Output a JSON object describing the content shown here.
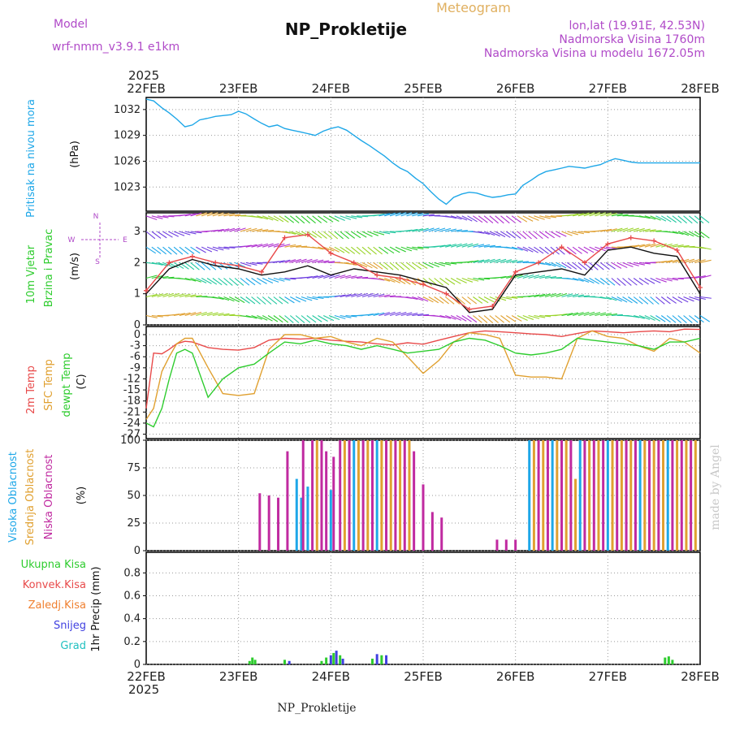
{
  "header": {
    "model_label": "Model",
    "model_name": "wrf-nmm_v3.9.1 e1km",
    "title": "NP_Prokletije",
    "subtitle": "Meteogram",
    "lonlat": "lon,lat (19.91E, 42.53N)",
    "elevation": "Nadmorska Visina 1760m",
    "model_elevation": "Nadmorska Visina u modelu 1672.05m",
    "footer": "NP_Prokletije",
    "credit": "made by Angel"
  },
  "time_axis": {
    "year": "2025",
    "labels": [
      "22FEB",
      "23FEB",
      "24FEB",
      "25FEB",
      "26FEB",
      "27FEB",
      "28FEB"
    ]
  },
  "colors": {
    "pressure": "#1ea7e8",
    "temp2m": "#e84a4a",
    "sfc": "#e0a030",
    "dewpt": "#2ecc2e",
    "cloud_high": "#1ea7e8",
    "cloud_mid": "#e0a030",
    "cloud_low": "#c02aa0",
    "precip_total": "#2ecc2e",
    "precip_conv": "#e84a4a",
    "precip_frozen": "#f08030",
    "snow": "#4040e0",
    "graupel": "#20c0c0"
  },
  "chart_data": [
    {
      "type": "line",
      "name": "pressure",
      "ylabel_1": "Pritisak na nivou mora",
      "ylabel_2": "(hPa)",
      "y_ticks": [
        "1032",
        "1029",
        "1026",
        "1023"
      ],
      "ylim": [
        1020.2,
        1033.4
      ],
      "x_days": [
        0,
        0.08,
        0.17,
        0.25,
        0.33,
        0.42,
        0.5,
        0.58,
        0.67,
        0.75,
        0.83,
        0.92,
        1.0,
        1.08,
        1.17,
        1.25,
        1.33,
        1.42,
        1.5,
        1.58,
        1.67,
        1.75,
        1.83,
        1.92,
        2.0,
        2.08,
        2.17,
        2.25,
        2.33,
        2.42,
        2.5,
        2.58,
        2.67,
        2.75,
        2.83,
        2.92,
        3.0,
        3.08,
        3.17,
        3.25,
        3.33,
        3.42,
        3.5,
        3.58,
        3.67,
        3.75,
        3.83,
        3.92,
        4.0,
        4.08,
        4.17,
        4.25,
        4.33,
        4.42,
        4.5,
        4.58,
        4.67,
        4.75,
        4.83,
        4.92,
        5.0,
        5.08,
        5.17,
        5.25,
        5.33,
        5.42,
        5.5,
        5.58,
        5.67,
        5.75,
        5.83,
        5.92,
        6.0
      ],
      "values": [
        1033.2,
        1033.0,
        1032.2,
        1031.6,
        1030.9,
        1030.0,
        1030.2,
        1030.8,
        1031.0,
        1031.2,
        1031.3,
        1031.4,
        1031.8,
        1031.5,
        1030.9,
        1030.4,
        1030.0,
        1030.2,
        1029.8,
        1029.6,
        1029.4,
        1029.2,
        1029.0,
        1029.5,
        1029.8,
        1030.0,
        1029.6,
        1029.0,
        1028.4,
        1027.8,
        1027.2,
        1026.6,
        1025.8,
        1025.2,
        1024.8,
        1024.0,
        1023.4,
        1022.5,
        1021.6,
        1021.0,
        1021.8,
        1022.2,
        1022.4,
        1022.3,
        1022.0,
        1021.8,
        1021.9,
        1022.1,
        1022.2,
        1023.2,
        1023.8,
        1024.4,
        1024.8,
        1025.0,
        1025.2,
        1025.4,
        1025.3,
        1025.2,
        1025.4,
        1025.6,
        1026.0,
        1026.3,
        1026.1,
        1025.9,
        1025.8,
        1025.8,
        1025.8,
        1025.8,
        1025.8,
        1025.8,
        1025.8,
        1025.8,
        1025.8
      ]
    },
    {
      "type": "wind",
      "name": "wind",
      "ylabel_1": "10m Vjetar",
      "ylabel_2": "Brzina i Pravac",
      "ylabel_3": "(m/s)",
      "compass": [
        "N",
        "W",
        "E",
        "S"
      ],
      "y_ticks": [
        "3",
        "2",
        "1",
        "0"
      ],
      "ylim": [
        0,
        3.6
      ],
      "x_days": [
        0,
        0.25,
        0.5,
        0.75,
        1.0,
        1.25,
        1.5,
        1.75,
        2.0,
        2.25,
        2.5,
        2.75,
        3.0,
        3.25,
        3.5,
        3.75,
        4.0,
        4.25,
        4.5,
        4.75,
        5.0,
        5.25,
        5.5,
        5.75,
        6.0
      ],
      "speed": [
        1.0,
        1.8,
        2.1,
        1.9,
        1.8,
        1.6,
        1.7,
        1.9,
        1.6,
        1.8,
        1.7,
        1.6,
        1.4,
        1.2,
        0.4,
        0.5,
        1.6,
        1.7,
        1.8,
        1.6,
        2.4,
        2.5,
        2.3,
        2.2,
        1.0
      ],
      "gust": [
        1.1,
        2.0,
        2.2,
        2.0,
        1.9,
        1.7,
        2.8,
        2.9,
        2.3,
        2.0,
        1.6,
        1.5,
        1.3,
        1.0,
        0.5,
        0.6,
        1.7,
        2.0,
        2.5,
        2.0,
        2.6,
        2.8,
        2.7,
        2.4,
        1.2
      ],
      "level_rows": [
        0.3,
        0.9,
        1.5,
        2.0,
        2.5,
        3.0,
        3.5
      ]
    },
    {
      "type": "line",
      "name": "temperature",
      "ylabel_1": "2m Temp",
      "ylabel_2": "SFC Temp",
      "ylabel_3": "dewpt Temp",
      "ylabel_4": "(C)",
      "y_ticks": [
        "0",
        "-3",
        "-6",
        "-9",
        "-12",
        "-15",
        "-18",
        "-21",
        "-24",
        "-27"
      ],
      "ylim": [
        -28.2,
        2.2
      ],
      "x_days": [
        0,
        0.08,
        0.17,
        0.25,
        0.33,
        0.42,
        0.5,
        0.67,
        0.83,
        1.0,
        1.17,
        1.33,
        1.5,
        1.67,
        1.83,
        2.0,
        2.17,
        2.33,
        2.5,
        2.67,
        2.83,
        3.0,
        3.17,
        3.33,
        3.5,
        3.67,
        3.83,
        4.0,
        4.17,
        4.33,
        4.5,
        4.67,
        4.83,
        5.0,
        5.17,
        5.33,
        5.5,
        5.67,
        5.83,
        6.0
      ],
      "series": [
        {
          "name": "2m Temp",
          "values": [
            -20,
            -5,
            -5.2,
            -4,
            -2.5,
            -1.8,
            -2.0,
            -3.5,
            -4.0,
            -4.2,
            -3.5,
            -1.5,
            -1.0,
            -1.2,
            -1.0,
            -1.5,
            -1.8,
            -2.0,
            -2.5,
            -2.8,
            -2.2,
            -2.6,
            -1.5,
            -0.5,
            0.5,
            1.0,
            0.8,
            0.5,
            0.2,
            0.0,
            -0.5,
            0.3,
            1.0,
            0.8,
            0.5,
            0.8,
            1.0,
            0.8,
            1.5,
            1.4
          ]
        },
        {
          "name": "SFC Temp",
          "values": [
            -23,
            -20,
            -10,
            -6,
            -2.5,
            -1,
            -1,
            -9,
            -16,
            -16.5,
            -16,
            -4,
            0,
            0,
            -1,
            -0.5,
            -2,
            -3,
            -1,
            -2,
            -6,
            -10.5,
            -7,
            -2,
            0.5,
            0,
            -1,
            -11,
            -11.5,
            -11.5,
            -12,
            -1,
            1,
            -0.5,
            -1,
            -3,
            -4.5,
            -1,
            -2,
            -5
          ]
        },
        {
          "name": "dewpt Temp",
          "values": [
            -24,
            -25,
            -20,
            -12,
            -5,
            -4,
            -5,
            -17,
            -12,
            -9,
            -8,
            -5,
            -2,
            -2.5,
            -1.5,
            -2.5,
            -3,
            -4,
            -3,
            -4,
            -5,
            -4.5,
            -4,
            -2,
            -1,
            -1.5,
            -3,
            -5,
            -5.5,
            -5,
            -4,
            -1,
            -1.5,
            -2,
            -2.5,
            -3,
            -4,
            -2,
            -2,
            -1
          ]
        }
      ]
    },
    {
      "type": "bar",
      "name": "clouds",
      "ylabel_1": "Visoka Oblacnost",
      "ylabel_2": "Srednja Oblacnost",
      "ylabel_3": "Niska Oblacnost",
      "ylabel_4": "(%)",
      "y_ticks": [
        "100",
        "75",
        "50",
        "25",
        "0"
      ],
      "ylim": [
        0,
        100
      ],
      "bars": [
        [
          1.23,
          "low",
          52
        ],
        [
          1.33,
          "low",
          50
        ],
        [
          1.43,
          "low",
          48
        ],
        [
          1.53,
          "low",
          90
        ],
        [
          1.63,
          "high",
          65
        ],
        [
          1.68,
          "high",
          48
        ],
        [
          1.7,
          "low",
          100
        ],
        [
          1.75,
          "high",
          58
        ],
        [
          1.8,
          "low",
          100
        ],
        [
          1.85,
          "mid",
          100
        ],
        [
          1.9,
          "low",
          100
        ],
        [
          1.95,
          "low",
          90
        ],
        [
          2.0,
          "high",
          55
        ],
        [
          2.03,
          "low",
          85
        ],
        [
          2.1,
          "low",
          100
        ],
        [
          2.15,
          "mid",
          100
        ],
        [
          2.2,
          "low",
          100
        ],
        [
          2.25,
          "high",
          100
        ],
        [
          2.3,
          "mid",
          100
        ],
        [
          2.35,
          "low",
          100
        ],
        [
          2.4,
          "mid",
          100
        ],
        [
          2.45,
          "low",
          100
        ],
        [
          2.5,
          "high",
          100
        ],
        [
          2.55,
          "mid",
          100
        ],
        [
          2.6,
          "low",
          100
        ],
        [
          2.65,
          "mid",
          100
        ],
        [
          2.7,
          "low",
          100
        ],
        [
          2.75,
          "mid",
          100
        ],
        [
          2.8,
          "low",
          100
        ],
        [
          2.85,
          "mid",
          100
        ],
        [
          2.9,
          "low",
          90
        ],
        [
          3.0,
          "low",
          60
        ],
        [
          3.1,
          "low",
          35
        ],
        [
          3.2,
          "low",
          30
        ],
        [
          3.8,
          "low",
          10
        ],
        [
          3.9,
          "low",
          10
        ],
        [
          4.0,
          "low",
          10
        ],
        [
          4.15,
          "high",
          100
        ],
        [
          4.2,
          "mid",
          100
        ],
        [
          4.25,
          "low",
          100
        ],
        [
          4.3,
          "mid",
          100
        ],
        [
          4.35,
          "low",
          100
        ],
        [
          4.4,
          "high",
          100
        ],
        [
          4.45,
          "mid",
          100
        ],
        [
          4.5,
          "low",
          100
        ],
        [
          4.55,
          "mid",
          100
        ],
        [
          4.6,
          "low",
          100
        ],
        [
          4.65,
          "mid",
          65
        ],
        [
          4.7,
          "high",
          100
        ],
        [
          4.75,
          "low",
          100
        ],
        [
          4.8,
          "mid",
          100
        ],
        [
          4.85,
          "low",
          100
        ],
        [
          4.9,
          "mid",
          100
        ],
        [
          4.95,
          "low",
          100
        ],
        [
          5.0,
          "high",
          100
        ],
        [
          5.05,
          "mid",
          100
        ],
        [
          5.1,
          "low",
          100
        ],
        [
          5.15,
          "mid",
          100
        ],
        [
          5.2,
          "low",
          100
        ],
        [
          5.25,
          "mid",
          100
        ],
        [
          5.3,
          "low",
          100
        ],
        [
          5.35,
          "high",
          100
        ],
        [
          5.4,
          "mid",
          100
        ],
        [
          5.45,
          "low",
          100
        ],
        [
          5.5,
          "mid",
          100
        ],
        [
          5.55,
          "low",
          100
        ],
        [
          5.6,
          "mid",
          100
        ],
        [
          5.65,
          "high",
          100
        ],
        [
          5.7,
          "low",
          100
        ],
        [
          5.75,
          "mid",
          100
        ],
        [
          5.8,
          "low",
          100
        ],
        [
          5.85,
          "mid",
          100
        ],
        [
          5.9,
          "low",
          100
        ],
        [
          5.95,
          "mid",
          100
        ]
      ]
    },
    {
      "type": "bar",
      "name": "precip",
      "legend": [
        "Ukupna Kisa",
        "Konvek.Kisa",
        "Zaledj.Kisa",
        "Snijeg",
        "Grad"
      ],
      "ylabel": "1hr Precip (mm)",
      "y_ticks": [
        "0.8",
        "0.6",
        "0.4",
        "0.2",
        "0"
      ],
      "ylim": [
        0,
        0.98
      ],
      "bars": [
        [
          1.12,
          "total",
          0.03
        ],
        [
          1.15,
          "total",
          0.06
        ],
        [
          1.18,
          "total",
          0.04
        ],
        [
          1.5,
          "total",
          0.04
        ],
        [
          1.55,
          "snow",
          0.03
        ],
        [
          1.9,
          "total",
          0.03
        ],
        [
          1.95,
          "total",
          0.06
        ],
        [
          2.0,
          "snow",
          0.08
        ],
        [
          2.03,
          "total",
          0.1
        ],
        [
          2.06,
          "snow",
          0.12
        ],
        [
          2.1,
          "total",
          0.08
        ],
        [
          2.13,
          "snow",
          0.05
        ],
        [
          2.45,
          "total",
          0.05
        ],
        [
          2.5,
          "snow",
          0.09
        ],
        [
          2.55,
          "total",
          0.08
        ],
        [
          2.6,
          "snow",
          0.08
        ],
        [
          5.62,
          "total",
          0.06
        ],
        [
          5.66,
          "total",
          0.07
        ],
        [
          5.7,
          "total",
          0.04
        ]
      ]
    }
  ]
}
